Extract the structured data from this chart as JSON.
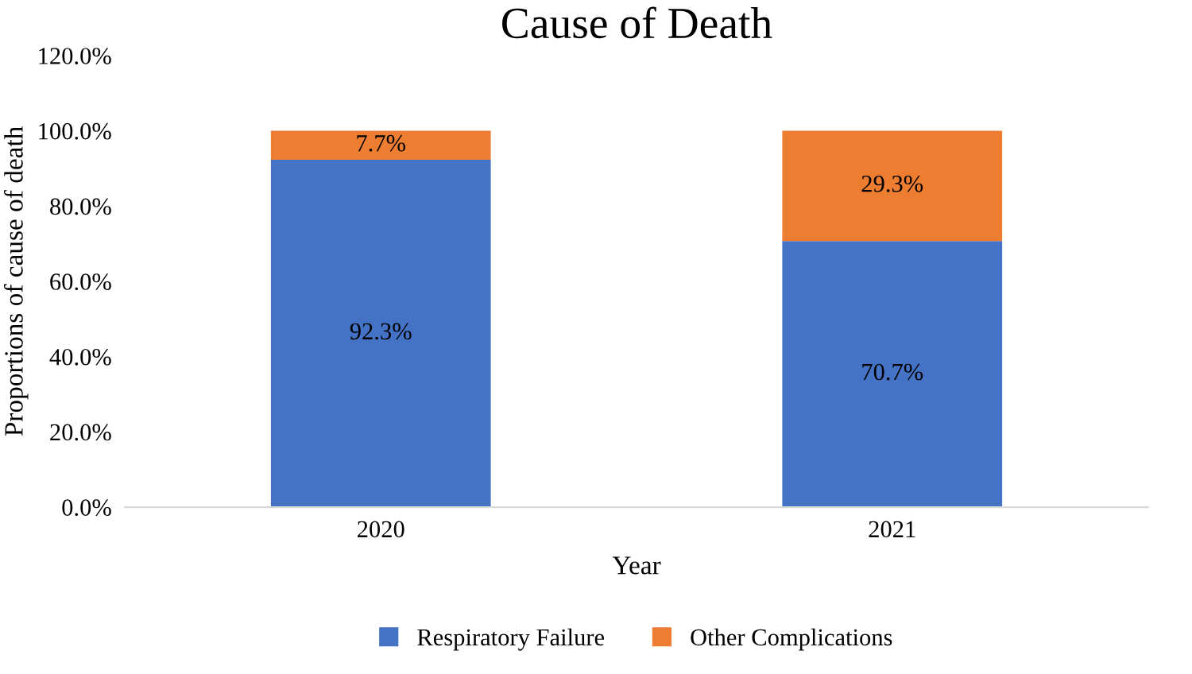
{
  "chart_data": {
    "type": "bar",
    "title": "Cause of Death",
    "xlabel": "Year",
    "ylabel": "Proportions of cause of death",
    "categories": [
      "2020",
      "2021"
    ],
    "stacked": true,
    "series": [
      {
        "name": "Respiratory Failure",
        "color": "#4472c4",
        "values": [
          92.3,
          70.7
        ],
        "value_labels": [
          "92.3%",
          "70.7%"
        ]
      },
      {
        "name": "Other Complications",
        "color": "#ed7d31",
        "values": [
          7.7,
          29.3
        ],
        "value_labels": [
          "7.7%",
          "29.3%"
        ]
      }
    ],
    "ylim": [
      0,
      120
    ],
    "yticks": [
      {
        "value": 0,
        "label": "0.0%"
      },
      {
        "value": 20,
        "label": "20.0%"
      },
      {
        "value": 40,
        "label": "40.0%"
      },
      {
        "value": 60,
        "label": "60.0%"
      },
      {
        "value": 80,
        "label": "80.0%"
      },
      {
        "value": 100,
        "label": "100.0%"
      },
      {
        "value": 120,
        "label": "120.0%"
      }
    ],
    "grid": false,
    "legend": "bottom"
  }
}
